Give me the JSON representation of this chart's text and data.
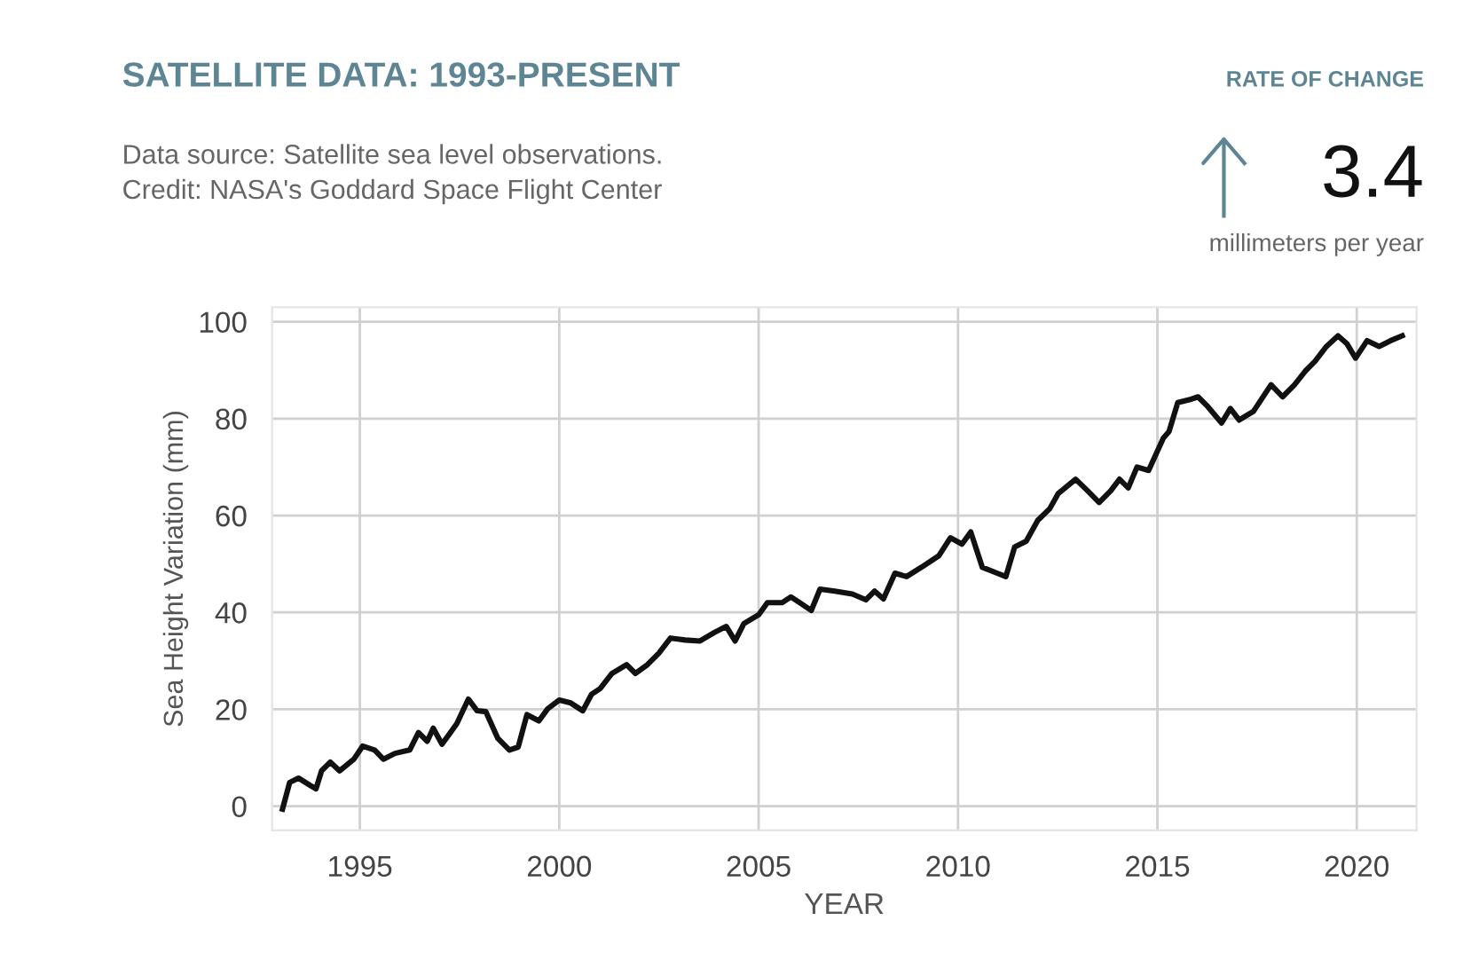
{
  "chart_data": {
    "type": "line",
    "title": "SATELLITE DATA: 1993-PRESENT",
    "subtitle": "Data source: Satellite sea level observations.\nCredit: NASA's Goddard Space Flight Center",
    "xlabel": "YEAR",
    "ylabel": "Sea Height Variation (mm)",
    "annotations": [
      "RATE OF CHANGE",
      "3.4",
      "millimeters per year"
    ],
    "series": [
      {
        "color": "#111111",
        "x": [
          1993.06,
          1993.24,
          1993.46,
          1993.75,
          1993.9,
          1994.04,
          1994.26,
          1994.49,
          1994.85,
          1995.07,
          1995.37,
          1995.59,
          1995.88,
          1996.25,
          1996.47,
          1996.69,
          1996.84,
          1997.06,
          1997.43,
          1997.72,
          1997.94,
          1998.16,
          1998.46,
          1998.75,
          1998.97,
          1999.19,
          1999.49,
          1999.71,
          2000.0,
          2000.29,
          2000.59,
          2000.81,
          2001.03,
          2001.32,
          2001.69,
          2001.91,
          2002.21,
          2002.5,
          2002.79,
          2003.16,
          2003.53,
          2003.9,
          2004.19,
          2004.41,
          2004.63,
          2005.0,
          2005.22,
          2005.59,
          2005.81,
          2006.03,
          2006.32,
          2006.54,
          2006.91,
          2007.35,
          2007.69,
          2007.91,
          2008.13,
          2008.42,
          2008.71,
          2009.08,
          2009.52,
          2009.81,
          2010.1,
          2010.32,
          2010.61,
          2010.98,
          2011.2,
          2011.42,
          2011.71,
          2012.0,
          2012.3,
          2012.51,
          2012.95,
          2013.25,
          2013.54,
          2013.83,
          2014.05,
          2014.27,
          2014.49,
          2014.78,
          2015.15,
          2015.29,
          2015.51,
          2015.8,
          2016.02,
          2016.24,
          2016.61,
          2016.83,
          2017.05,
          2017.41,
          2017.85,
          2018.14,
          2018.44,
          2018.73,
          2018.95,
          2019.24,
          2019.53,
          2019.75,
          2019.97,
          2020.26,
          2020.56,
          2020.85,
          2021.14
        ],
        "values": [
          -0.6,
          4.9,
          5.8,
          4.3,
          3.6,
          7.3,
          9.1,
          7.3,
          9.7,
          12.4,
          11.6,
          9.7,
          10.9,
          11.6,
          15.2,
          13.4,
          16.1,
          12.8,
          17.0,
          22.1,
          19.7,
          19.5,
          14.0,
          11.6,
          12.2,
          18.9,
          17.6,
          20.1,
          21.9,
          21.3,
          19.7,
          23.1,
          24.3,
          27.4,
          29.2,
          27.4,
          29.2,
          31.6,
          34.7,
          34.3,
          34.1,
          35.9,
          37.1,
          34.1,
          37.7,
          39.5,
          42.0,
          42.0,
          43.2,
          42.0,
          40.4,
          44.8,
          44.4,
          43.8,
          42.6,
          44.4,
          42.8,
          48.1,
          47.4,
          49.3,
          51.7,
          55.4,
          54.1,
          56.6,
          49.3,
          48.1,
          47.4,
          53.5,
          54.7,
          59.0,
          61.4,
          64.5,
          67.5,
          65.1,
          62.7,
          65.1,
          67.5,
          65.7,
          70.0,
          69.3,
          76.0,
          77.3,
          83.3,
          83.9,
          84.5,
          82.7,
          79.1,
          82.1,
          79.7,
          81.5,
          87.0,
          84.5,
          87.0,
          90.0,
          91.8,
          94.9,
          97.1,
          95.5,
          92.5,
          96.1,
          94.9,
          96.1,
          97.1
        ]
      }
    ],
    "xlim": [
      1992.8,
      2021.5
    ],
    "ylim": [
      -5,
      103
    ],
    "xticks": [
      1995,
      2000,
      2005,
      2010,
      2015,
      2020
    ],
    "yticks": [
      0,
      20,
      40,
      60,
      80,
      100
    ],
    "grid": true,
    "legend": false,
    "marker": "none",
    "line_style": "solid"
  }
}
